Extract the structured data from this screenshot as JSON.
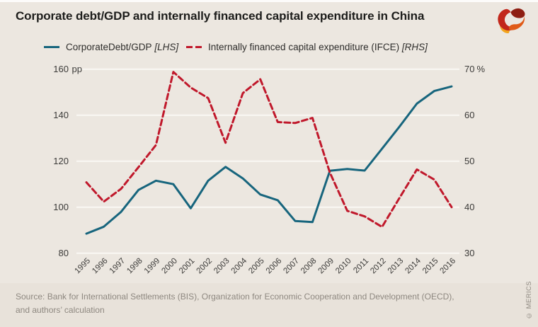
{
  "header": {
    "title": "Corporate debt/GDP and internally financed capital expenditure in China",
    "logo": "merics-logo"
  },
  "legend": {
    "items": [
      {
        "label": "CorporateDebt/GDP",
        "tag": "[LHS]",
        "swatch": "solid-teal-line"
      },
      {
        "label": "Internally financed capital expenditure (IFCE)",
        "tag": "[RHS]",
        "swatch": "dashed-red-line"
      }
    ]
  },
  "chart_data": {
    "type": "line",
    "title": "Corporate debt/GDP and internally financed capital expenditure in China",
    "x": [
      1995,
      1996,
      1997,
      1998,
      1999,
      2000,
      2001,
      2002,
      2003,
      2004,
      2005,
      2006,
      2007,
      2008,
      2009,
      2010,
      2011,
      2012,
      2013,
      2014,
      2015,
      2016
    ],
    "series": [
      {
        "name": "CorporateDebt/GDP",
        "axis": "left",
        "unit": "pp",
        "line_style": "solid",
        "color": "#17657D",
        "values": [
          88.5,
          91.5,
          98,
          107.5,
          111.5,
          110,
          99.5,
          111.5,
          117.5,
          112.5,
          105.5,
          103,
          94,
          93.5,
          115.8,
          116.6,
          115.9,
          125.4,
          135,
          145,
          150.5,
          152.5
        ]
      },
      {
        "name": "Internally financed capital expenditure (IFCE)",
        "axis": "right",
        "unit": "%",
        "line_style": "dashed",
        "color": "#C0182B",
        "values": [
          45.4,
          41.2,
          44,
          48.7,
          53.5,
          69.4,
          66,
          63.7,
          54,
          64.8,
          67.8,
          58.5,
          58.3,
          59.4,
          47.5,
          39.2,
          38,
          35.7,
          42,
          48.2,
          46,
          40
        ]
      }
    ],
    "left_axis": {
      "unit": "pp",
      "min": 80,
      "max": 160,
      "ticks": [
        160,
        140,
        120,
        100,
        80
      ]
    },
    "right_axis": {
      "unit": "%",
      "min": 30,
      "max": 70,
      "ticks": [
        70,
        60,
        50,
        40,
        30
      ]
    },
    "grid": true,
    "legend_position": "top",
    "background": "#ece7e0"
  },
  "footer": {
    "source_line1": "Source: Bank for International Settlements (BIS), Organization for Economic Cooperation and Development (OECD),",
    "source_line2": "and authors’ calculation",
    "copyright": "© MERICS"
  }
}
